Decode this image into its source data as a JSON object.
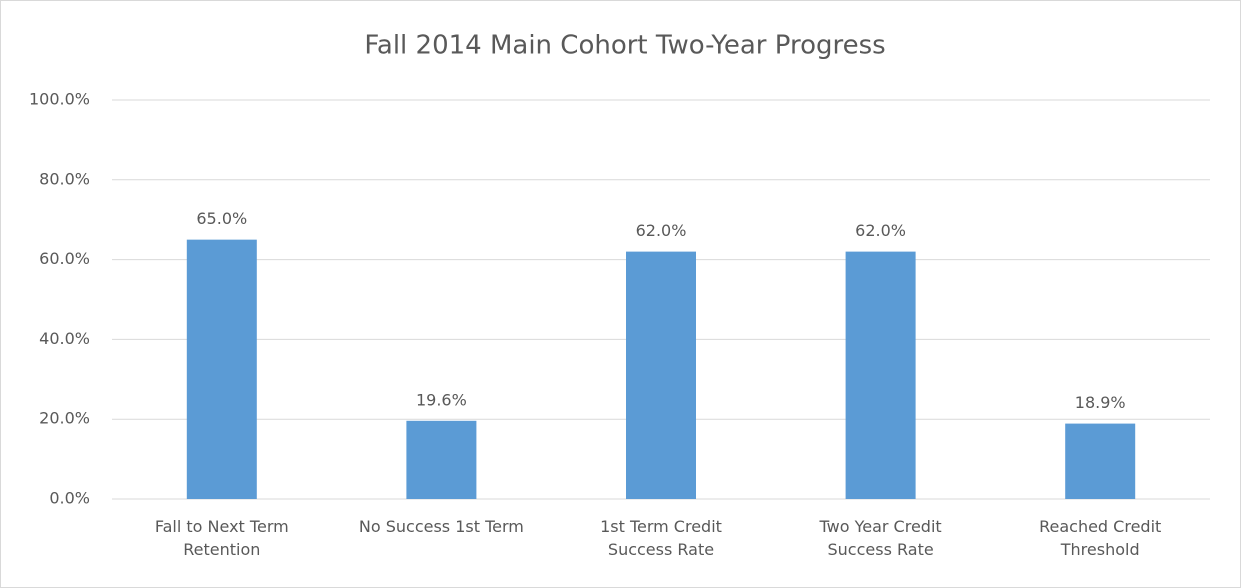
{
  "chart_data": {
    "type": "bar",
    "title": "Fall 2014 Main Cohort Two-Year Progress",
    "categories": [
      "Fall to Next Term Retention",
      "No Success 1st Term",
      "1st Term Credit Success Rate",
      "Two Year Credit Success Rate",
      "Reached Credit Threshold"
    ],
    "values": [
      65.0,
      19.6,
      62.0,
      62.0,
      18.9
    ],
    "value_labels": [
      "65.0%",
      "19.6%",
      "62.0%",
      "62.0%",
      "18.9%"
    ],
    "color": "#5b9bd5",
    "ylim": [
      0,
      100
    ],
    "yticks": [
      {
        "value": 0,
        "label": "0.0%"
      },
      {
        "value": 20,
        "label": "20.0%"
      },
      {
        "value": 40,
        "label": "40.0%"
      },
      {
        "value": 60,
        "label": "60.0%"
      },
      {
        "value": 80,
        "label": "80.0%"
      },
      {
        "value": 100,
        "label": "100.0%"
      }
    ],
    "grid": true
  }
}
